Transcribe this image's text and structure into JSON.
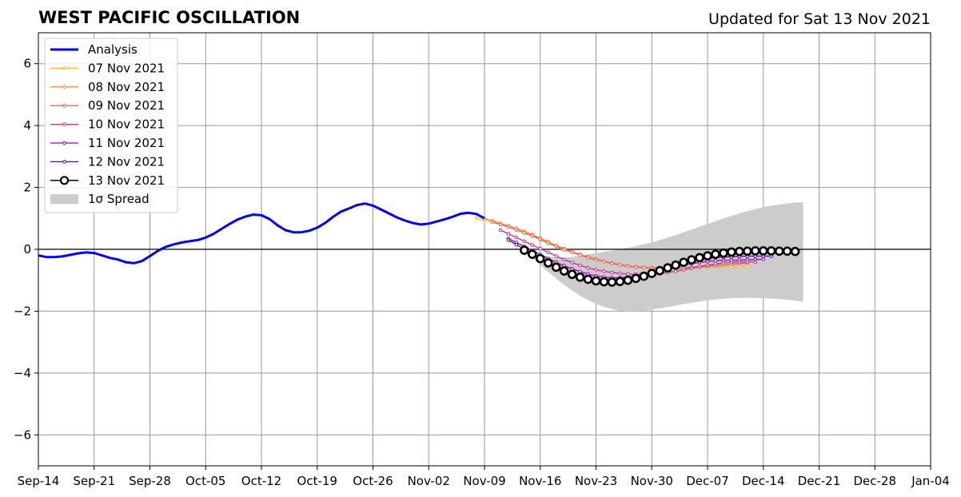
{
  "chart_data": {
    "type": "line",
    "title": "WEST PACIFIC OSCILLATION",
    "subtitle": "Updated for Sat 13 Nov 2021",
    "xlabel": "",
    "ylabel": "",
    "x_range": [
      "2021-09-14",
      "2022-01-04"
    ],
    "ylim": [
      -7,
      7
    ],
    "grid": true,
    "legend_position": "upper-left",
    "x_ticks": [
      "Sep-14",
      "Sep-21",
      "Sep-28",
      "Oct-05",
      "Oct-12",
      "Oct-19",
      "Oct-26",
      "Nov-02",
      "Nov-09",
      "Nov-16",
      "Nov-23",
      "Nov-30",
      "Dec-07",
      "Dec-14",
      "Dec-21",
      "Dec-28",
      "Jan-04"
    ],
    "y_ticks": [
      6,
      4,
      2,
      0,
      -2,
      -4,
      -6
    ],
    "y_tick_labels": [
      "6",
      "4",
      "2",
      "0",
      "−2",
      "−4",
      "−6"
    ],
    "analysis": {
      "name": "Analysis",
      "color": "#0000ee",
      "x": [
        "2021-09-14",
        "2021-09-15",
        "2021-09-16",
        "2021-09-17",
        "2021-09-18",
        "2021-09-19",
        "2021-09-20",
        "2021-09-21",
        "2021-09-22",
        "2021-09-23",
        "2021-09-24",
        "2021-09-25",
        "2021-09-26",
        "2021-09-27",
        "2021-09-28",
        "2021-09-29",
        "2021-09-30",
        "2021-10-01",
        "2021-10-02",
        "2021-10-03",
        "2021-10-04",
        "2021-10-05",
        "2021-10-06",
        "2021-10-07",
        "2021-10-08",
        "2021-10-09",
        "2021-10-10",
        "2021-10-11",
        "2021-10-12",
        "2021-10-13",
        "2021-10-14",
        "2021-10-15",
        "2021-10-16",
        "2021-10-17",
        "2021-10-18",
        "2021-10-19",
        "2021-10-20",
        "2021-10-21",
        "2021-10-22",
        "2021-10-23",
        "2021-10-24",
        "2021-10-25",
        "2021-10-26",
        "2021-10-27",
        "2021-10-28",
        "2021-10-29",
        "2021-10-30",
        "2021-10-31",
        "2021-11-01",
        "2021-11-02",
        "2021-11-03",
        "2021-11-04",
        "2021-11-05",
        "2021-11-06",
        "2021-11-07",
        "2021-11-08",
        "2021-11-09"
      ],
      "y": [
        -0.2,
        -0.25,
        -0.25,
        -0.23,
        -0.18,
        -0.13,
        -0.1,
        -0.12,
        -0.2,
        -0.28,
        -0.33,
        -0.42,
        -0.45,
        -0.38,
        -0.22,
        -0.05,
        0.08,
        0.16,
        0.22,
        0.26,
        0.3,
        0.38,
        0.5,
        0.66,
        0.82,
        0.96,
        1.06,
        1.12,
        1.1,
        0.98,
        0.78,
        0.62,
        0.55,
        0.55,
        0.6,
        0.7,
        0.85,
        1.05,
        1.22,
        1.32,
        1.43,
        1.48,
        1.41,
        1.29,
        1.16,
        1.03,
        0.93,
        0.85,
        0.8,
        0.83,
        0.9,
        0.97,
        1.05,
        1.15,
        1.18,
        1.14,
        1.0
      ]
    },
    "series": [
      {
        "name": "07 Nov 2021",
        "color": "#fdb42f",
        "x_start": "2021-11-08",
        "y": [
          1.0,
          0.95,
          0.88,
          0.8,
          0.72,
          0.62,
          0.52,
          0.42,
          0.3,
          0.18,
          0.08,
          -0.02,
          -0.1,
          -0.18,
          -0.25,
          -0.32,
          -0.38,
          -0.44,
          -0.5,
          -0.54,
          -0.58,
          -0.6,
          -0.62,
          -0.63,
          -0.63,
          -0.62,
          -0.61,
          -0.6,
          -0.59,
          -0.58,
          -0.58,
          -0.57,
          -0.57,
          -0.56,
          -0.55
        ]
      },
      {
        "name": "08 Nov 2021",
        "color": "#f48849",
        "x_start": "2021-11-09",
        "y": [
          1.0,
          0.92,
          0.84,
          0.76,
          0.68,
          0.58,
          0.48,
          0.36,
          0.24,
          0.12,
          0.02,
          -0.08,
          -0.16,
          -0.24,
          -0.31,
          -0.38,
          -0.44,
          -0.49,
          -0.53,
          -0.56,
          -0.58,
          -0.59,
          -0.6,
          -0.6,
          -0.6,
          -0.59,
          -0.58,
          -0.57,
          -0.55,
          -0.53,
          -0.51,
          -0.49,
          -0.47,
          -0.45
        ]
      },
      {
        "name": "09 Nov 2021",
        "color": "#e16462",
        "x_start": "2021-11-10",
        "y": [
          0.88,
          0.8,
          0.72,
          0.63,
          0.54,
          0.44,
          0.33,
          0.22,
          0.11,
          0.0,
          -0.1,
          -0.19,
          -0.27,
          -0.34,
          -0.4,
          -0.46,
          -0.51,
          -0.55,
          -0.58,
          -0.6,
          -0.61,
          -0.62,
          -0.62,
          -0.61,
          -0.6,
          -0.58,
          -0.56,
          -0.54,
          -0.52,
          -0.5,
          -0.48,
          -0.46,
          -0.45
        ]
      },
      {
        "name": "10 Nov 2021",
        "color": "#b83289",
        "x_start": "2021-11-11",
        "y": [
          0.62,
          0.5,
          0.38,
          0.26,
          0.14,
          0.02,
          -0.1,
          -0.22,
          -0.33,
          -0.43,
          -0.52,
          -0.6,
          -0.66,
          -0.71,
          -0.75,
          -0.78,
          -0.8,
          -0.81,
          -0.81,
          -0.8,
          -0.78,
          -0.75,
          -0.71,
          -0.66,
          -0.61,
          -0.56,
          -0.51,
          -0.47,
          -0.44,
          -0.42,
          -0.41,
          -0.41,
          -0.41
        ]
      },
      {
        "name": "11 Nov 2021",
        "color": "#8b0aa5",
        "x_start": "2021-11-12",
        "y": [
          0.35,
          0.22,
          0.09,
          -0.04,
          -0.17,
          -0.3,
          -0.42,
          -0.53,
          -0.63,
          -0.72,
          -0.8,
          -0.86,
          -0.9,
          -0.92,
          -0.92,
          -0.9,
          -0.86,
          -0.81,
          -0.75,
          -0.69,
          -0.63,
          -0.57,
          -0.51,
          -0.46,
          -0.42,
          -0.39,
          -0.37,
          -0.36,
          -0.35,
          -0.35,
          -0.34,
          -0.33,
          -0.32
        ]
      },
      {
        "name": "12 Nov 2021",
        "color": "#5302a3",
        "x_start": "2021-11-12",
        "y": [
          0.3,
          0.15,
          0.0,
          -0.15,
          -0.3,
          -0.44,
          -0.57,
          -0.69,
          -0.8,
          -0.89,
          -0.96,
          -1.0,
          -1.01,
          -1.0,
          -0.97,
          -0.92,
          -0.86,
          -0.79,
          -0.72,
          -0.65,
          -0.58,
          -0.51,
          -0.45,
          -0.39,
          -0.34,
          -0.3,
          -0.27,
          -0.25,
          -0.24,
          -0.23,
          -0.22,
          -0.22,
          -0.22,
          -0.22
        ]
      },
      {
        "name": "13 Nov 2021",
        "color": "#000000",
        "x_start": "2021-11-14",
        "y": [
          -0.03,
          -0.16,
          -0.3,
          -0.44,
          -0.58,
          -0.7,
          -0.81,
          -0.9,
          -0.97,
          -1.02,
          -1.05,
          -1.06,
          -1.04,
          -1.0,
          -0.94,
          -0.87,
          -0.78,
          -0.69,
          -0.6,
          -0.51,
          -0.42,
          -0.34,
          -0.27,
          -0.21,
          -0.16,
          -0.12,
          -0.09,
          -0.07,
          -0.06,
          -0.05,
          -0.05,
          -0.05,
          -0.06,
          -0.06,
          -0.07
        ]
      }
    ],
    "spread": {
      "name": "1σ Spread",
      "color": "#cccccc",
      "x_start": "2021-11-14",
      "upper": [
        -0.03,
        -0.12,
        -0.19,
        -0.24,
        -0.27,
        -0.27,
        -0.25,
        -0.2,
        -0.16,
        -0.12,
        -0.08,
        -0.04,
        0.0,
        0.05,
        0.1,
        0.16,
        0.22,
        0.3,
        0.38,
        0.46,
        0.55,
        0.64,
        0.73,
        0.82,
        0.91,
        1.0,
        1.08,
        1.16,
        1.24,
        1.3,
        1.36,
        1.41,
        1.45,
        1.48,
        1.51,
        1.52
      ],
      "lower": [
        -0.03,
        -0.27,
        -0.51,
        -0.73,
        -0.95,
        -1.15,
        -1.33,
        -1.5,
        -1.64,
        -1.76,
        -1.86,
        -1.93,
        -1.98,
        -2.0,
        -2.0,
        -1.98,
        -1.95,
        -1.91,
        -1.87,
        -1.82,
        -1.77,
        -1.73,
        -1.69,
        -1.65,
        -1.62,
        -1.6,
        -1.58,
        -1.57,
        -1.57,
        -1.57,
        -1.58,
        -1.59,
        -1.61,
        -1.63,
        -1.66,
        -1.7
      ]
    }
  }
}
